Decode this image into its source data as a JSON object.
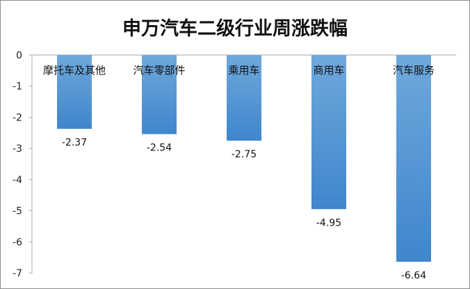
{
  "chart_data": {
    "type": "bar",
    "title": "申万汽车二级行业周涨跌幅",
    "categories": [
      "摩托车及其他",
      "汽车零部件",
      "乘用车",
      "商用车",
      "汽车服务"
    ],
    "values": [
      -2.37,
      -2.54,
      -2.75,
      -4.95,
      -6.64
    ],
    "value_labels": [
      "-2.37",
      "-2.54",
      "-2.75",
      "-4.95",
      "-6.64"
    ],
    "ylim": [
      -7,
      0
    ],
    "yticks": [
      0,
      -1,
      -2,
      -3,
      -4,
      -5,
      -6,
      -7
    ],
    "grid": false,
    "bar_color_top": "#6fa8dc",
    "bar_color_bottom": "#3f86cc"
  }
}
